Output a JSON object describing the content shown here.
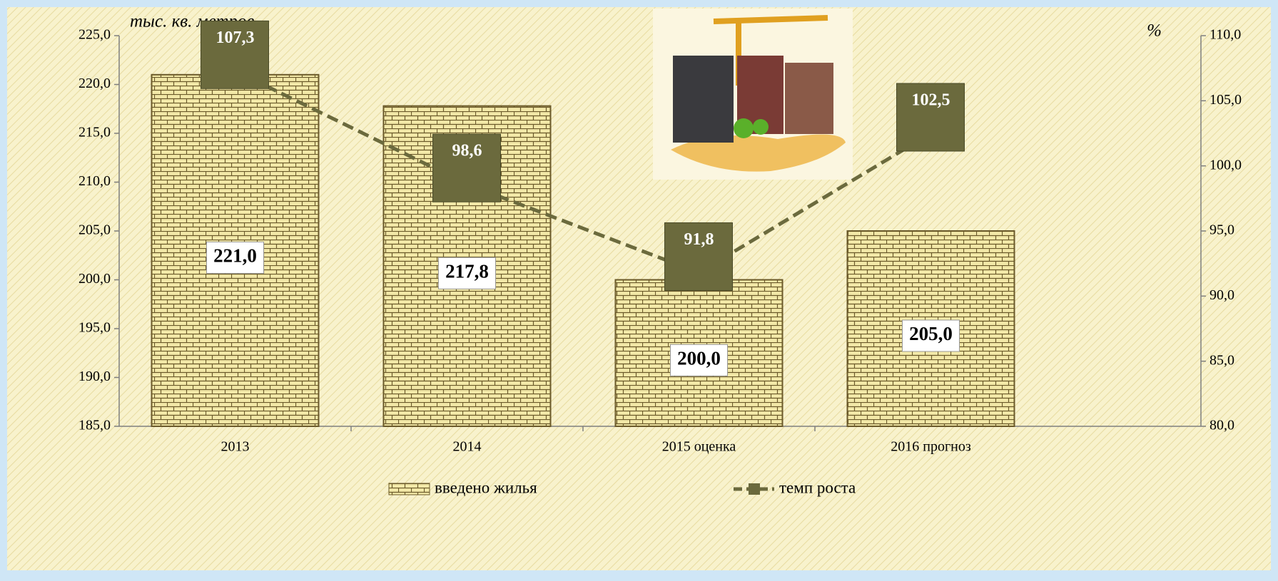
{
  "chart_data": {
    "type": "bar",
    "y_label": "тыс. кв. метров",
    "y2_label": "%",
    "categories": [
      "2013",
      "2014",
      "2015 оценка",
      "2016 прогноз"
    ],
    "series": [
      {
        "name": "введено жилья",
        "type": "bar",
        "color": "#f3e9a8",
        "values": [
          221.0,
          217.8,
          200.0,
          205.0
        ],
        "value_labels": [
          "221,0",
          "217,8",
          "200,0",
          "205,0"
        ]
      },
      {
        "name": "темп роста",
        "type": "line",
        "axis": "y2",
        "color": "#6b6a3d",
        "values": [
          107.3,
          98.6,
          91.8,
          102.5
        ],
        "value_labels": [
          "107,3",
          "98,6",
          "91,8",
          "102,5"
        ]
      }
    ],
    "ylim": [
      185,
      225
    ],
    "yticks": [
      {
        "value": 185,
        "label": "185,0"
      },
      {
        "value": 190,
        "label": "190,0"
      },
      {
        "value": 195,
        "label": "195,0"
      },
      {
        "value": 200,
        "label": "200,0"
      },
      {
        "value": 205,
        "label": "205,0"
      },
      {
        "value": 210,
        "label": "210,0"
      },
      {
        "value": 215,
        "label": "215,0"
      },
      {
        "value": 220,
        "label": "220,0"
      },
      {
        "value": 225,
        "label": "225,0"
      }
    ],
    "y2lim": [
      80,
      110
    ],
    "y2ticks": [
      {
        "value": 80,
        "label": "80,0"
      },
      {
        "value": 85,
        "label": "85,0"
      },
      {
        "value": 90,
        "label": "90,0"
      },
      {
        "value": 95,
        "label": "95,0"
      },
      {
        "value": 100,
        "label": "100,0"
      },
      {
        "value": 105,
        "label": "105,0"
      },
      {
        "value": 110,
        "label": "110,0"
      }
    ],
    "legend": "bottom"
  }
}
